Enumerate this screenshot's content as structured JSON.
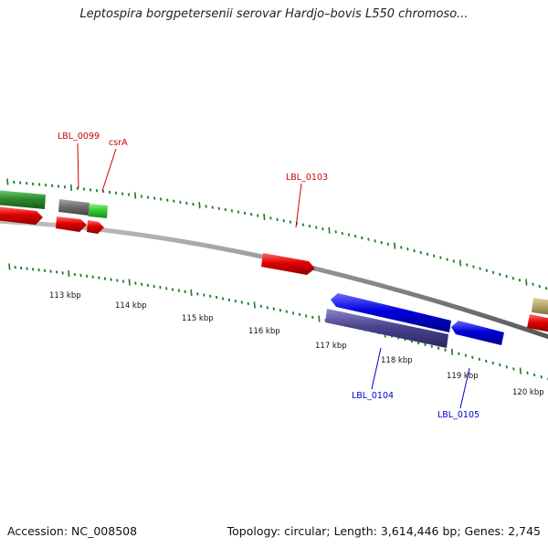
{
  "title": "Leptospira borgpetersenii serovar Hardjo–bovis L550 chromoso...",
  "footer": {
    "accession": "Accession: NC_008508",
    "stats": "Topology: circular; Length: 3,614,446 bp; Genes: 2,745"
  },
  "colors": {
    "backbone": "#8a8a8a",
    "tick": "#1f7a1f",
    "label_red": "#cc0000",
    "label_blue": "#0000cc"
  },
  "scale_ticks": [
    "113 kbp",
    "114 kbp",
    "115 kbp",
    "116 kbp",
    "117 kbp",
    "118 kbp",
    "119 kbp",
    "120 kbp"
  ],
  "gene_labels": [
    {
      "name": "LBL_0099",
      "color": "#cc0000"
    },
    {
      "name": "csrA",
      "color": "#cc0000"
    },
    {
      "name": "LBL_0103",
      "color": "#cc0000"
    },
    {
      "name": "LBL_0104",
      "color": "#0000cc"
    },
    {
      "name": "LBL_0105",
      "color": "#0000cc"
    }
  ],
  "features": [
    {
      "name": "forward-cds-left-green",
      "strand": "+",
      "color": "#2e8b2e"
    },
    {
      "name": "forward-cds-gray",
      "strand": "+",
      "color": "#6e6e6e"
    },
    {
      "name": "forward-cds-csrA",
      "strand": "+",
      "color": "#33cc33"
    },
    {
      "name": "forward-cds-right-tan",
      "strand": "+",
      "color": "#b8a76a"
    },
    {
      "name": "forward-cds-left-red",
      "strand": "+",
      "color": "#e00000"
    },
    {
      "name": "forward-cds-LBL_0099",
      "strand": "+",
      "color": "#e00000"
    },
    {
      "name": "forward-cds-small-red",
      "strand": "+",
      "color": "#e00000"
    },
    {
      "name": "forward-cds-LBL_0103",
      "strand": "+",
      "color": "#e00000"
    },
    {
      "name": "forward-cds-right-red",
      "strand": "+",
      "color": "#e00000"
    },
    {
      "name": "reverse-cds-blue-long",
      "strand": "-",
      "color": "#0000dd"
    },
    {
      "name": "reverse-cds-blue-short",
      "strand": "-",
      "color": "#0000dd"
    },
    {
      "name": "cds-LBL_0104",
      "strand": "-",
      "color": "#4a4490"
    }
  ]
}
